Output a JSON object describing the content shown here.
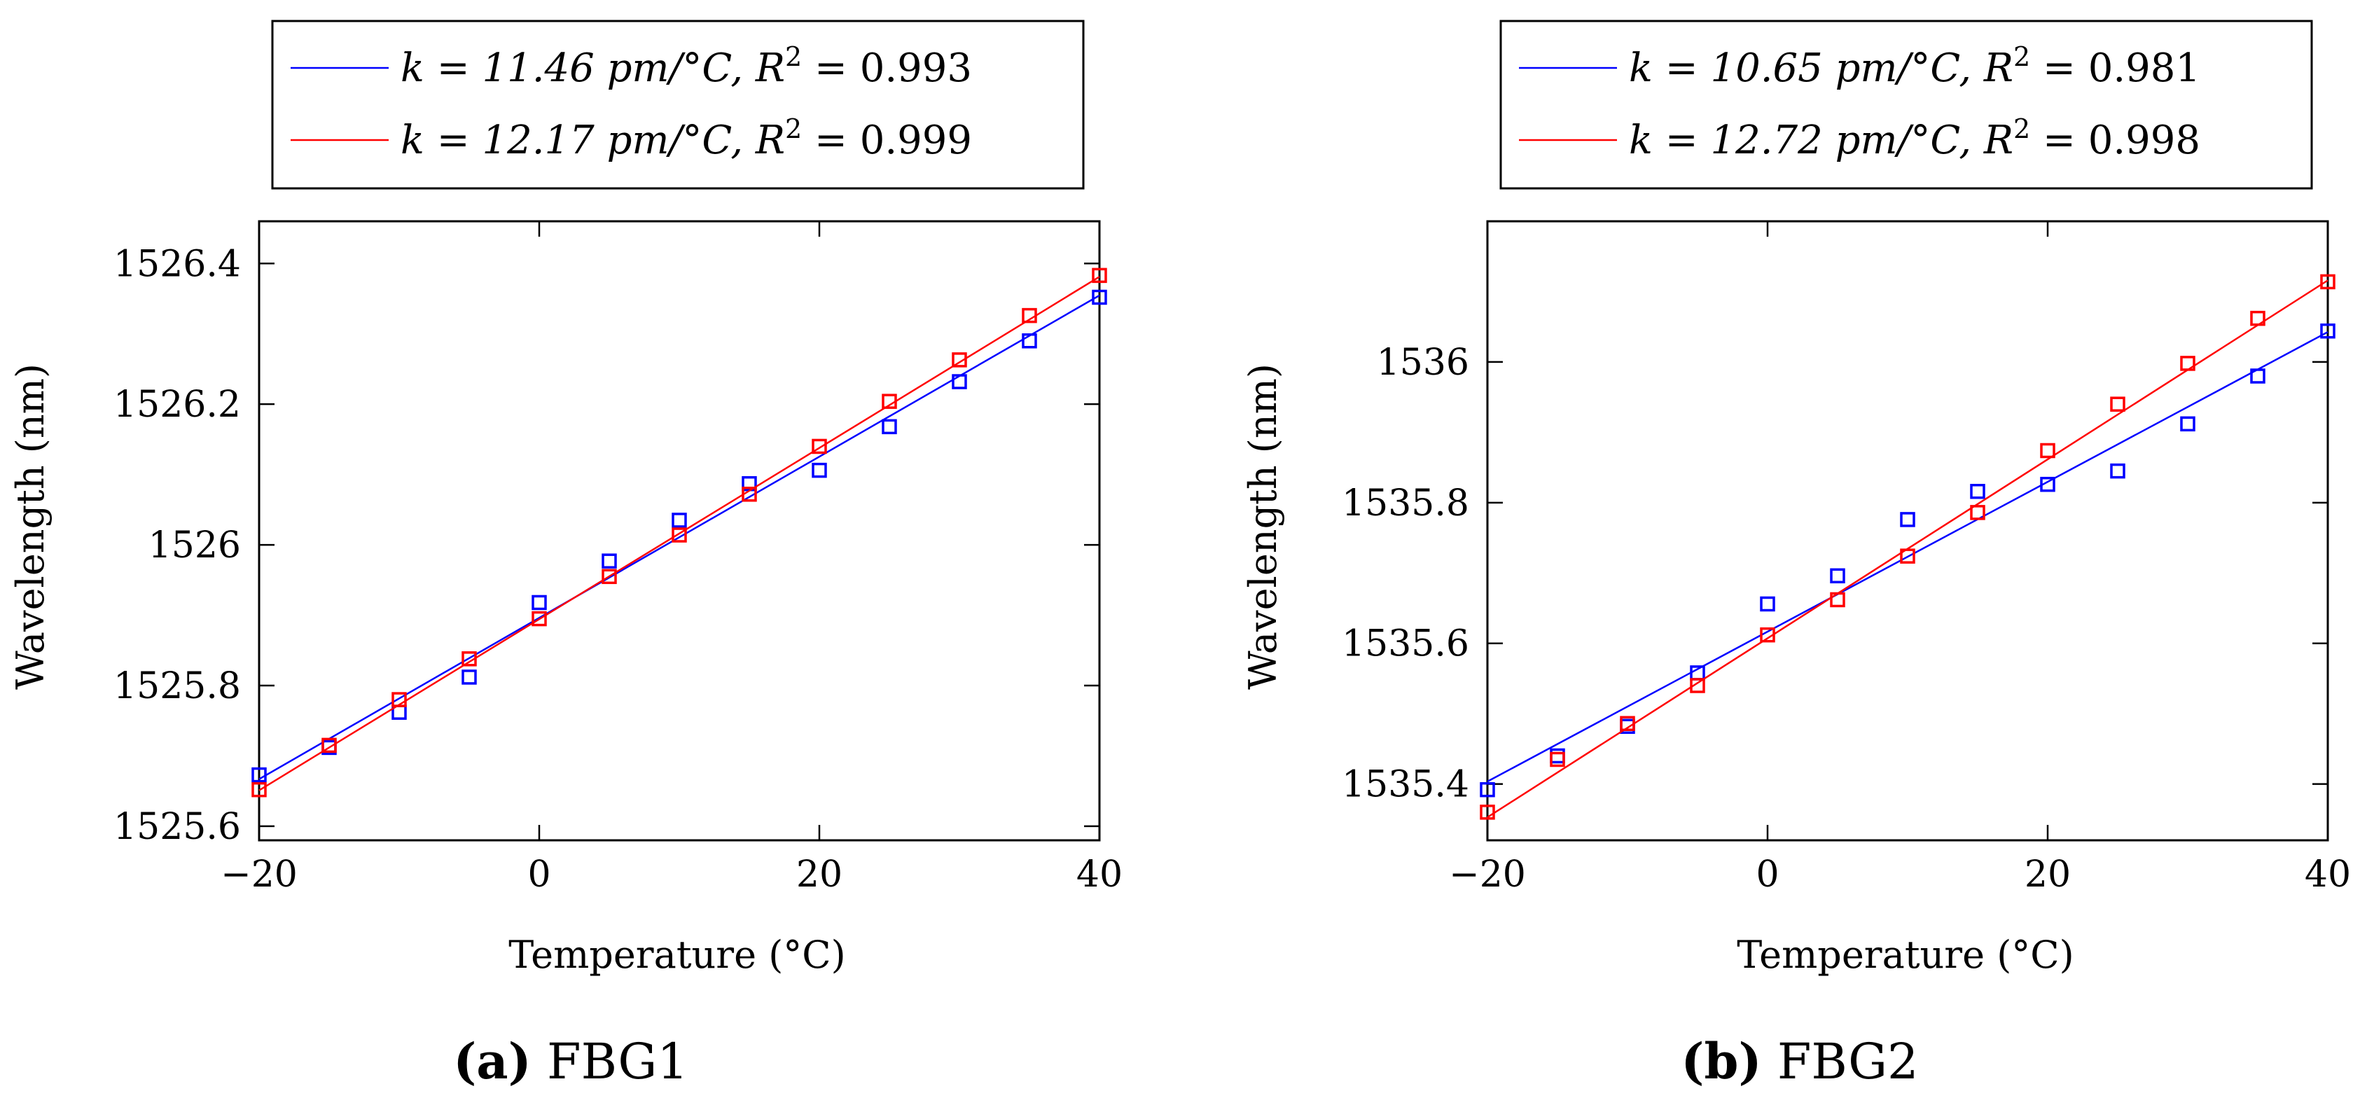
{
  "figure_captions": [
    {
      "letter": "(a)",
      "text": " FBG1"
    },
    {
      "letter": "(b)",
      "text": " FBG2"
    }
  ],
  "colors": {
    "series1": "#0000ff",
    "series2": "#ff0000",
    "axis": "#000000"
  },
  "chart_data": [
    {
      "type": "scatter",
      "title": "FBG1",
      "xlabel": "Temperature (°C)",
      "ylabel": "Wavelength (nm)",
      "xlim": [
        -20,
        40
      ],
      "ylim": [
        1525.58,
        1526.46
      ],
      "xticks": [
        -20,
        0,
        20,
        40
      ],
      "yticks": [
        1525.6,
        1525.8,
        1526,
        1526.2,
        1526.4
      ],
      "xtick_labels": [
        "−20",
        "0",
        "20",
        "40"
      ],
      "ytick_labels": [
        "1525.6",
        "1525.8",
        "1526",
        "1526.2",
        "1526.4"
      ],
      "legend_position": "above",
      "x": [
        -20,
        -15,
        -10,
        -5,
        0,
        5,
        10,
        15,
        20,
        25,
        30,
        35,
        40
      ],
      "series": [
        {
          "name": "k = 11.46 pm/°C, R² = 0.993",
          "legend_k": "k = 11.46 pm/°C, ",
          "legend_r2": "R",
          "legend_r2_sup": "2",
          "legend_r2_val": " = 0.993",
          "color": "#0000ff",
          "values": [
            1525.673,
            1525.712,
            1525.762,
            1525.812,
            1525.918,
            1525.977,
            1526.035,
            1526.087,
            1526.106,
            1526.168,
            1526.232,
            1526.29,
            1526.352
          ],
          "fit": {
            "slope": 0.01146,
            "intercept": 1525.8962
          }
        },
        {
          "name": "k = 12.17 pm/°C, R² = 0.999",
          "legend_k": "k = 12.17 pm/°C, ",
          "legend_r2": "R",
          "legend_r2_sup": "2",
          "legend_r2_val": " = 0.999",
          "color": "#ff0000",
          "values": [
            1525.652,
            1525.715,
            1525.78,
            1525.838,
            1525.895,
            1525.955,
            1526.014,
            1526.072,
            1526.14,
            1526.204,
            1526.263,
            1526.326,
            1526.383
          ],
          "fit": {
            "slope": 0.01217,
            "intercept": 1525.8944
          }
        }
      ]
    },
    {
      "type": "scatter",
      "title": "FBG2",
      "xlabel": "Temperature (°C)",
      "ylabel": "Wavelength (nm)",
      "xlim": [
        -20,
        40
      ],
      "ylim": [
        1535.32,
        1536.2
      ],
      "xticks": [
        -20,
        0,
        20,
        40
      ],
      "yticks": [
        1535.4,
        1535.6,
        1535.8,
        1536
      ],
      "xtick_labels": [
        "−20",
        "0",
        "20",
        "40"
      ],
      "ytick_labels": [
        "1535.4",
        "1535.6",
        "1535.8",
        "1536"
      ],
      "legend_position": "above",
      "x": [
        -20,
        -15,
        -10,
        -5,
        0,
        5,
        10,
        15,
        20,
        25,
        30,
        35,
        40
      ],
      "series": [
        {
          "name": "k = 10.65 pm/°C, R² = 0.981",
          "legend_k": "k = 10.65 pm/°C, ",
          "legend_r2": "R",
          "legend_r2_sup": "2",
          "legend_r2_val": " = 0.981",
          "color": "#0000ff",
          "values": [
            1535.392,
            1535.44,
            1535.482,
            1535.558,
            1535.656,
            1535.696,
            1535.776,
            1535.816,
            1535.826,
            1535.845,
            1535.912,
            1535.98,
            1536.044
          ],
          "fit": {
            "slope": 0.01065,
            "intercept": 1535.6166
          }
        },
        {
          "name": "k = 12.72 pm/°C, R² = 0.998",
          "legend_k": "k = 12.72 pm/°C, ",
          "legend_r2": "R",
          "legend_r2_sup": "2",
          "legend_r2_val": " = 0.998",
          "color": "#ff0000",
          "values": [
            1535.36,
            1535.435,
            1535.486,
            1535.54,
            1535.612,
            1535.662,
            1535.724,
            1535.786,
            1535.874,
            1535.94,
            1535.998,
            1536.062,
            1536.114
          ],
          "fit": {
            "slope": 0.01272,
            "intercept": 1535.6072
          }
        }
      ]
    }
  ]
}
